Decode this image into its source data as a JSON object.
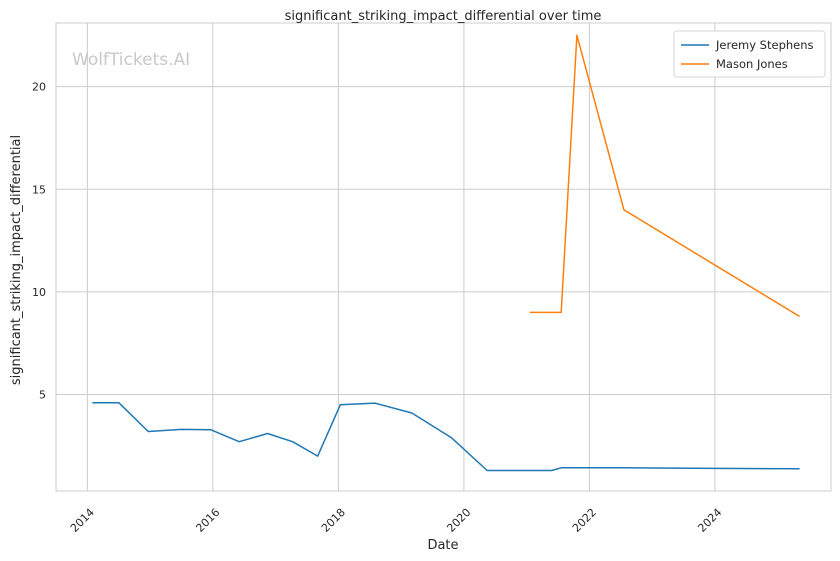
{
  "chart_data": {
    "type": "line",
    "title": "significant_striking_impact_differential over time",
    "xlabel": "Date",
    "ylabel": "significant_striking_impact_differential",
    "watermark": "WolfTickets.AI",
    "xlim": [
      2013.5,
      2025.85
    ],
    "ylim": [
      0.3,
      23.1
    ],
    "x_ticks": [
      2014,
      2016,
      2018,
      2020,
      2022,
      2024
    ],
    "y_ticks": [
      5,
      10,
      15,
      20
    ],
    "grid": true,
    "legend_position": "top-right",
    "series": [
      {
        "name": "Jeremy Stephens",
        "color": "#1f77b4",
        "points": [
          [
            2014.08,
            4.6
          ],
          [
            2014.5,
            4.6
          ],
          [
            2014.97,
            3.2
          ],
          [
            2015.5,
            3.3
          ],
          [
            2015.97,
            3.28
          ],
          [
            2016.42,
            2.7
          ],
          [
            2016.87,
            3.1
          ],
          [
            2017.27,
            2.7
          ],
          [
            2017.67,
            2.0
          ],
          [
            2018.03,
            4.5
          ],
          [
            2018.58,
            4.58
          ],
          [
            2019.17,
            4.1
          ],
          [
            2019.8,
            2.9
          ],
          [
            2020.37,
            1.3
          ],
          [
            2021.4,
            1.3
          ],
          [
            2021.55,
            1.43
          ],
          [
            2022.5,
            1.43
          ],
          [
            2024.0,
            1.4
          ],
          [
            2025.35,
            1.38
          ]
        ]
      },
      {
        "name": "Mason Jones",
        "color": "#ff7f0e",
        "points": [
          [
            2021.05,
            9.0
          ],
          [
            2021.55,
            9.0
          ],
          [
            2021.8,
            22.5
          ],
          [
            2022.55,
            14.0
          ],
          [
            2025.35,
            8.8
          ]
        ]
      }
    ]
  }
}
